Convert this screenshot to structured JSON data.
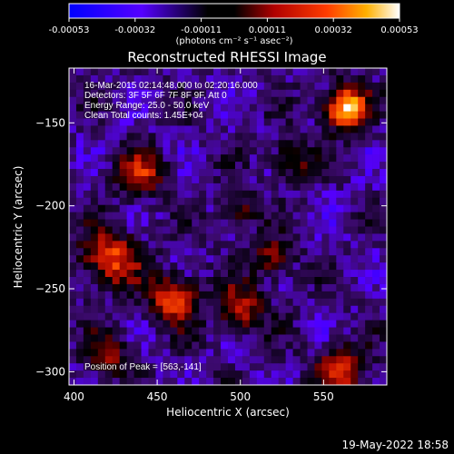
{
  "chart_data": {
    "type": "heatmap",
    "title": "Reconstructed RHESSI Image",
    "xlabel": "Heliocentric X (arcsec)",
    "ylabel": "Heliocentric Y (arcsec)",
    "xlim": [
      397,
      588
    ],
    "ylim": [
      -308,
      -117
    ],
    "xticks": [
      400,
      450,
      500,
      550
    ],
    "yticks": [
      -150,
      -200,
      -250,
      -300
    ],
    "colorbar": {
      "unit_label": "(photons cm⁻² s⁻¹ asec⁻²)",
      "range": [
        -0.00053,
        0.00053
      ],
      "ticks": [
        "-0.00053",
        "-0.00032",
        "-0.00011",
        "0.00011",
        "0.00032",
        "0.00053"
      ],
      "colormap": "blue-purple-black-red-orange-yellow-white"
    },
    "annotations": [
      "16-Mar-2015 02:14:48.000 to 02:20:16.000",
      "Detectors: 3F 5F 6F 7F 8F 9F, Att 0",
      "Energy Range: 25.0 - 50.0 keV",
      "Clean     Total counts: 1.45E+04"
    ],
    "peak_label": "Position of Peak = [563,-141]",
    "peak": {
      "x": 563,
      "y": -141
    },
    "sources": [
      {
        "x": 563,
        "y": -141,
        "intensity": 1.0,
        "sigma": 9
      },
      {
        "x": 422,
        "y": -232,
        "intensity": 0.7,
        "sigma": 12
      },
      {
        "x": 460,
        "y": -256,
        "intensity": 0.7,
        "sigma": 10
      },
      {
        "x": 440,
        "y": -181,
        "intensity": 0.55,
        "sigma": 10
      },
      {
        "x": 500,
        "y": -262,
        "intensity": 0.55,
        "sigma": 10
      },
      {
        "x": 520,
        "y": -232,
        "intensity": 0.5,
        "sigma": 8
      },
      {
        "x": 530,
        "y": -172,
        "intensity": 0.45,
        "sigma": 8
      },
      {
        "x": 560,
        "y": -300,
        "intensity": 0.55,
        "sigma": 11
      },
      {
        "x": 420,
        "y": -290,
        "intensity": 0.45,
        "sigma": 9
      },
      {
        "x": 500,
        "y": -203,
        "intensity": 0.35,
        "sigma": 8
      }
    ]
  },
  "footer": {
    "date": "19-May-2022 18:58"
  }
}
